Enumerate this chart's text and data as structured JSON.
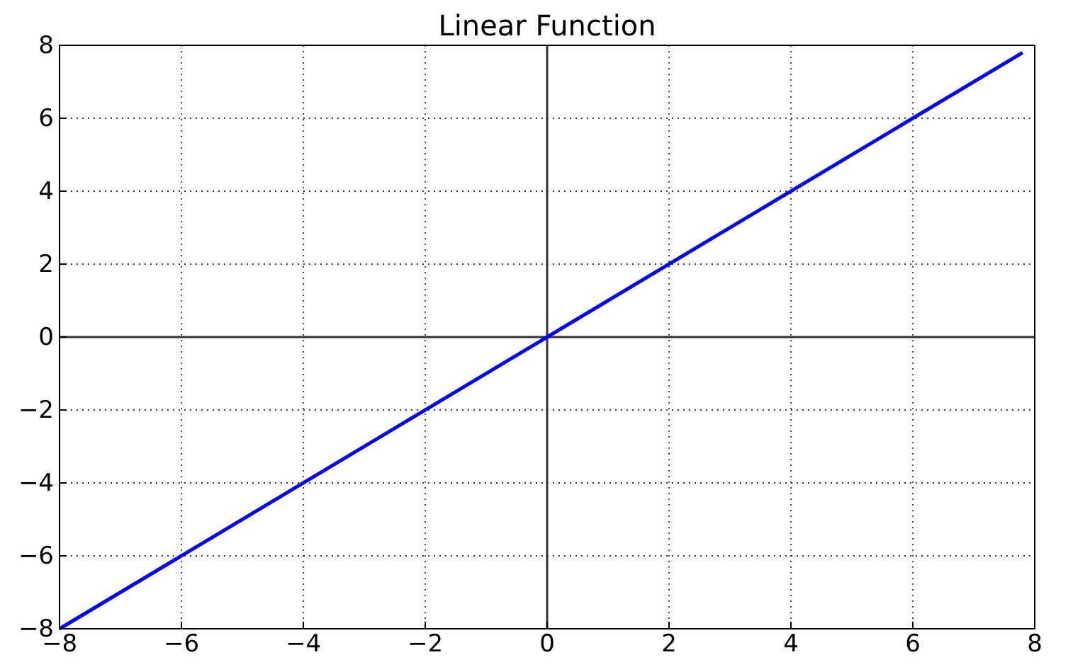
{
  "chart_data": {
    "type": "line",
    "title": "Linear Function",
    "x": [
      -8,
      7.8
    ],
    "series": [
      {
        "color": "#0000ff",
        "values": [
          -8,
          7.8
        ]
      }
    ],
    "xlim": [
      -8,
      8
    ],
    "ylim": [
      -8,
      8
    ],
    "xticks": [
      {
        "value": -8,
        "label": "−8"
      },
      {
        "value": -6,
        "label": "−6"
      },
      {
        "value": -4,
        "label": "−4"
      },
      {
        "value": -2,
        "label": "−2"
      },
      0,
      2,
      4,
      6,
      8
    ],
    "yticks": [
      {
        "value": -8,
        "label": "−8"
      },
      {
        "value": -6,
        "label": "−6"
      },
      {
        "value": -4,
        "label": "−4"
      },
      {
        "value": -2,
        "label": "−2"
      },
      0,
      2,
      4,
      6,
      8
    ],
    "grid": true,
    "line_style": "solid",
    "marker": "none"
  }
}
